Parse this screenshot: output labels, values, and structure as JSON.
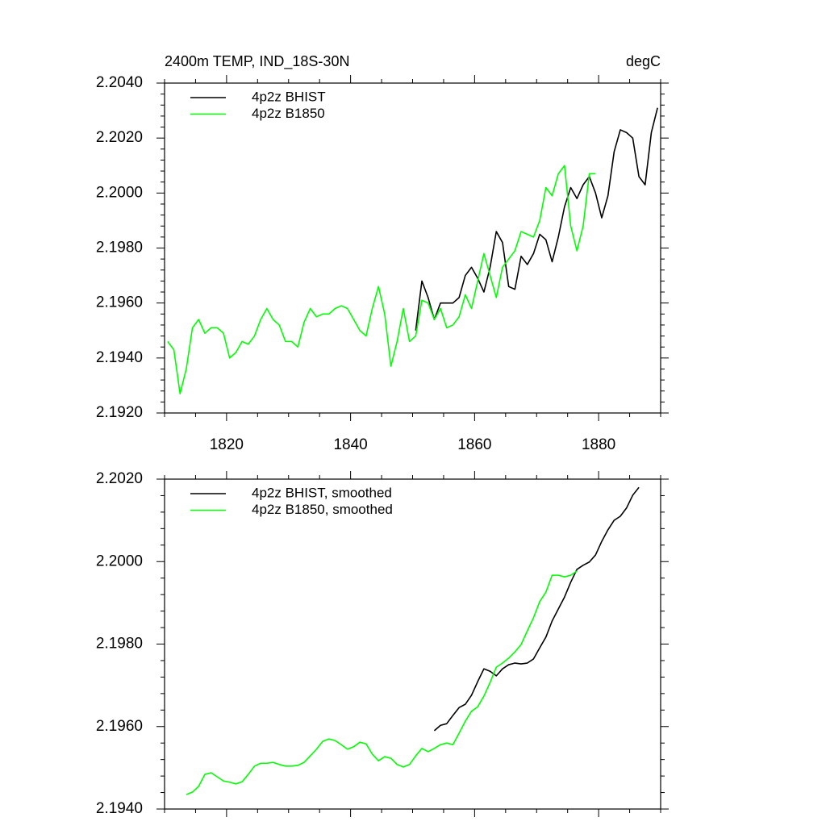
{
  "chart_data": [
    {
      "type": "line",
      "left_title": "2400m TEMP, IND_18S-30N",
      "right_title": "degC",
      "xlim": [
        1810,
        1890
      ],
      "xticks": [
        1820,
        1840,
        1860,
        1880
      ],
      "ylim": [
        2.192,
        2.204
      ],
      "yticks": [
        {
          "value": 2.192,
          "label": "2.1920"
        },
        {
          "value": 2.194,
          "label": "2.1940"
        },
        {
          "value": 2.196,
          "label": "2.1960"
        },
        {
          "value": 2.198,
          "label": "2.1980"
        },
        {
          "value": 2.2,
          "label": "2.2000"
        },
        {
          "value": 2.202,
          "label": "2.2020"
        },
        {
          "value": 2.204,
          "label": "2.2040"
        }
      ],
      "legend": "top-left",
      "series": [
        {
          "name": "4p2z BHIST",
          "color": "#000000",
          "x": [
            1850.5,
            1851.5,
            1852.5,
            1853.5,
            1854.5,
            1855.5,
            1856.5,
            1857.5,
            1858.5,
            1859.5,
            1860.5,
            1861.5,
            1862.5,
            1863.5,
            1864.5,
            1865.5,
            1866.5,
            1867.5,
            1868.5,
            1869.5,
            1870.5,
            1871.5,
            1872.5,
            1873.5,
            1874.5,
            1875.5,
            1876.5,
            1877.5,
            1878.5,
            1879.5,
            1880.5,
            1881.5,
            1882.5,
            1883.5,
            1884.5,
            1885.5,
            1886.5,
            1887.5,
            1888.5,
            1889.5
          ],
          "values": [
            2.195,
            2.1968,
            2.1962,
            2.1954,
            2.196,
            2.196,
            2.196,
            2.1962,
            2.197,
            2.1973,
            2.1969,
            2.1964,
            2.1973,
            2.1986,
            2.1982,
            2.1966,
            2.1965,
            2.1977,
            2.1974,
            2.1978,
            2.1985,
            2.1983,
            2.1975,
            2.1984,
            2.1995,
            2.2002,
            2.1998,
            2.2003,
            2.2006,
            2.2,
            2.1991,
            2.1999,
            2.2015,
            2.2023,
            2.2022,
            2.202,
            2.2006,
            2.2003,
            2.2022,
            2.2031
          ]
        },
        {
          "name": "4p2z B1850",
          "color": "#00ff00",
          "x": [
            1810.5,
            1811.5,
            1812.5,
            1813.5,
            1814.5,
            1815.5,
            1816.5,
            1817.5,
            1818.5,
            1819.5,
            1820.5,
            1821.5,
            1822.5,
            1823.5,
            1824.5,
            1825.5,
            1826.5,
            1827.5,
            1828.5,
            1829.5,
            1830.5,
            1831.5,
            1832.5,
            1833.5,
            1834.5,
            1835.5,
            1836.5,
            1837.5,
            1838.5,
            1839.5,
            1840.5,
            1841.5,
            1842.5,
            1843.5,
            1844.5,
            1845.5,
            1846.5,
            1847.5,
            1848.5,
            1849.5,
            1850.5,
            1851.5,
            1852.5,
            1853.5,
            1854.5,
            1855.5,
            1856.5,
            1857.5,
            1858.5,
            1859.5,
            1860.5,
            1861.5,
            1862.5,
            1863.5,
            1864.5,
            1865.5,
            1866.5,
            1867.5,
            1868.5,
            1869.5,
            1870.5,
            1871.5,
            1872.5,
            1873.5,
            1874.5,
            1875.5,
            1876.5,
            1877.5,
            1878.5,
            1879.5
          ],
          "values": [
            2.1946,
            2.1943,
            2.1927,
            2.1936,
            2.1951,
            2.1954,
            2.1949,
            2.1951,
            2.1951,
            2.1949,
            2.194,
            2.1942,
            2.1946,
            2.1945,
            2.1948,
            2.1954,
            2.1958,
            2.1954,
            2.1952,
            2.1946,
            2.1946,
            2.1944,
            2.1953,
            2.1958,
            2.1955,
            2.1956,
            2.1956,
            2.1958,
            2.1959,
            2.1958,
            2.1954,
            2.195,
            2.1948,
            2.1958,
            2.1966,
            2.1956,
            2.1937,
            2.1946,
            2.1958,
            2.1946,
            2.1948,
            2.1961,
            2.196,
            2.1954,
            2.1958,
            2.1951,
            2.1952,
            2.1955,
            2.1963,
            2.1958,
            2.1968,
            2.1978,
            2.197,
            2.1962,
            2.1973,
            2.1976,
            2.1979,
            2.1986,
            2.1985,
            2.1984,
            2.199,
            2.2002,
            2.1999,
            2.2007,
            2.201,
            2.1988,
            2.1979,
            2.1988,
            2.2007,
            2.2007
          ]
        }
      ]
    },
    {
      "type": "line",
      "xlim": [
        1810,
        1890
      ],
      "xticks": [
        1820,
        1840,
        1860,
        1880
      ],
      "ylim": [
        2.194,
        2.202
      ],
      "yticks": [
        {
          "value": 2.194,
          "label": "2.1940"
        },
        {
          "value": 2.196,
          "label": "2.1960"
        },
        {
          "value": 2.198,
          "label": "2.1980"
        },
        {
          "value": 2.2,
          "label": "2.2000"
        },
        {
          "value": 2.202,
          "label": "2.2020"
        }
      ],
      "legend": "top-left",
      "series": [
        {
          "name": "4p2z BHIST, smoothed",
          "color": "#000000",
          "x": [
            1853.5,
            1854.5,
            1855.5,
            1856.5,
            1857.5,
            1858.5,
            1859.5,
            1860.5,
            1861.5,
            1862.5,
            1863.5,
            1864.5,
            1865.5,
            1866.5,
            1867.5,
            1868.5,
            1869.5,
            1870.5,
            1871.5,
            1872.5,
            1873.5,
            1874.5,
            1875.5,
            1876.5,
            1877.5,
            1878.5,
            1879.5,
            1880.5,
            1881.5,
            1882.5,
            1883.5,
            1884.5,
            1885.5,
            1886.5
          ],
          "values": [
            2.1959,
            2.19603,
            2.19607,
            2.19627,
            2.19646,
            2.19654,
            2.19676,
            2.19709,
            2.1974,
            2.19734,
            2.19723,
            2.1974,
            2.1975,
            2.19754,
            2.19752,
            2.19754,
            2.19764,
            2.19791,
            2.19817,
            2.19856,
            2.19885,
            2.19914,
            2.1995,
            2.19981,
            2.19991,
            2.19999,
            2.20016,
            2.20049,
            2.20077,
            2.201,
            2.2011,
            2.2013,
            2.20161,
            2.2018
          ]
        },
        {
          "name": "4p2z B1850, smoothed",
          "color": "#00ff00",
          "x": [
            1813.5,
            1814.5,
            1815.5,
            1816.5,
            1817.5,
            1818.5,
            1819.5,
            1820.5,
            1821.5,
            1822.5,
            1823.5,
            1824.5,
            1825.5,
            1826.5,
            1827.5,
            1828.5,
            1829.5,
            1830.5,
            1831.5,
            1832.5,
            1833.5,
            1834.5,
            1835.5,
            1836.5,
            1837.5,
            1838.5,
            1839.5,
            1840.5,
            1841.5,
            1842.5,
            1843.5,
            1844.5,
            1845.5,
            1846.5,
            1847.5,
            1848.5,
            1849.5,
            1850.5,
            1851.5,
            1852.5,
            1853.5,
            1854.5,
            1855.5,
            1856.5,
            1857.5,
            1858.5,
            1859.5,
            1860.5,
            1861.5,
            1862.5,
            1863.5,
            1864.5,
            1865.5,
            1866.5,
            1867.5,
            1868.5,
            1869.5,
            1870.5,
            1871.5,
            1872.5,
            1873.5,
            1874.5,
            1875.5,
            1876.5
          ],
          "values": [
            2.19435,
            2.19441,
            2.19455,
            2.19484,
            2.19488,
            2.19478,
            2.19468,
            2.19465,
            2.19461,
            2.19466,
            2.19484,
            2.19504,
            2.19511,
            2.19511,
            2.19513,
            2.19508,
            2.19504,
            2.19504,
            2.19506,
            2.19513,
            2.19529,
            2.19545,
            2.19564,
            2.1957,
            2.19566,
            2.19556,
            2.19545,
            2.19551,
            2.19562,
            2.19558,
            2.19533,
            2.19517,
            2.19527,
            2.19523,
            2.19508,
            2.19502,
            2.19508,
            2.19529,
            2.19547,
            2.19539,
            2.19547,
            2.19556,
            2.1956,
            2.19556,
            2.19584,
            2.19613,
            2.19637,
            2.19648,
            2.19674,
            2.19707,
            2.19744,
            2.19754,
            2.19766,
            2.19781,
            2.19799,
            2.19832,
            2.19864,
            2.19903,
            2.19926,
            2.19967,
            2.19967,
            2.19963,
            2.19967,
            2.19977
          ]
        }
      ]
    }
  ]
}
